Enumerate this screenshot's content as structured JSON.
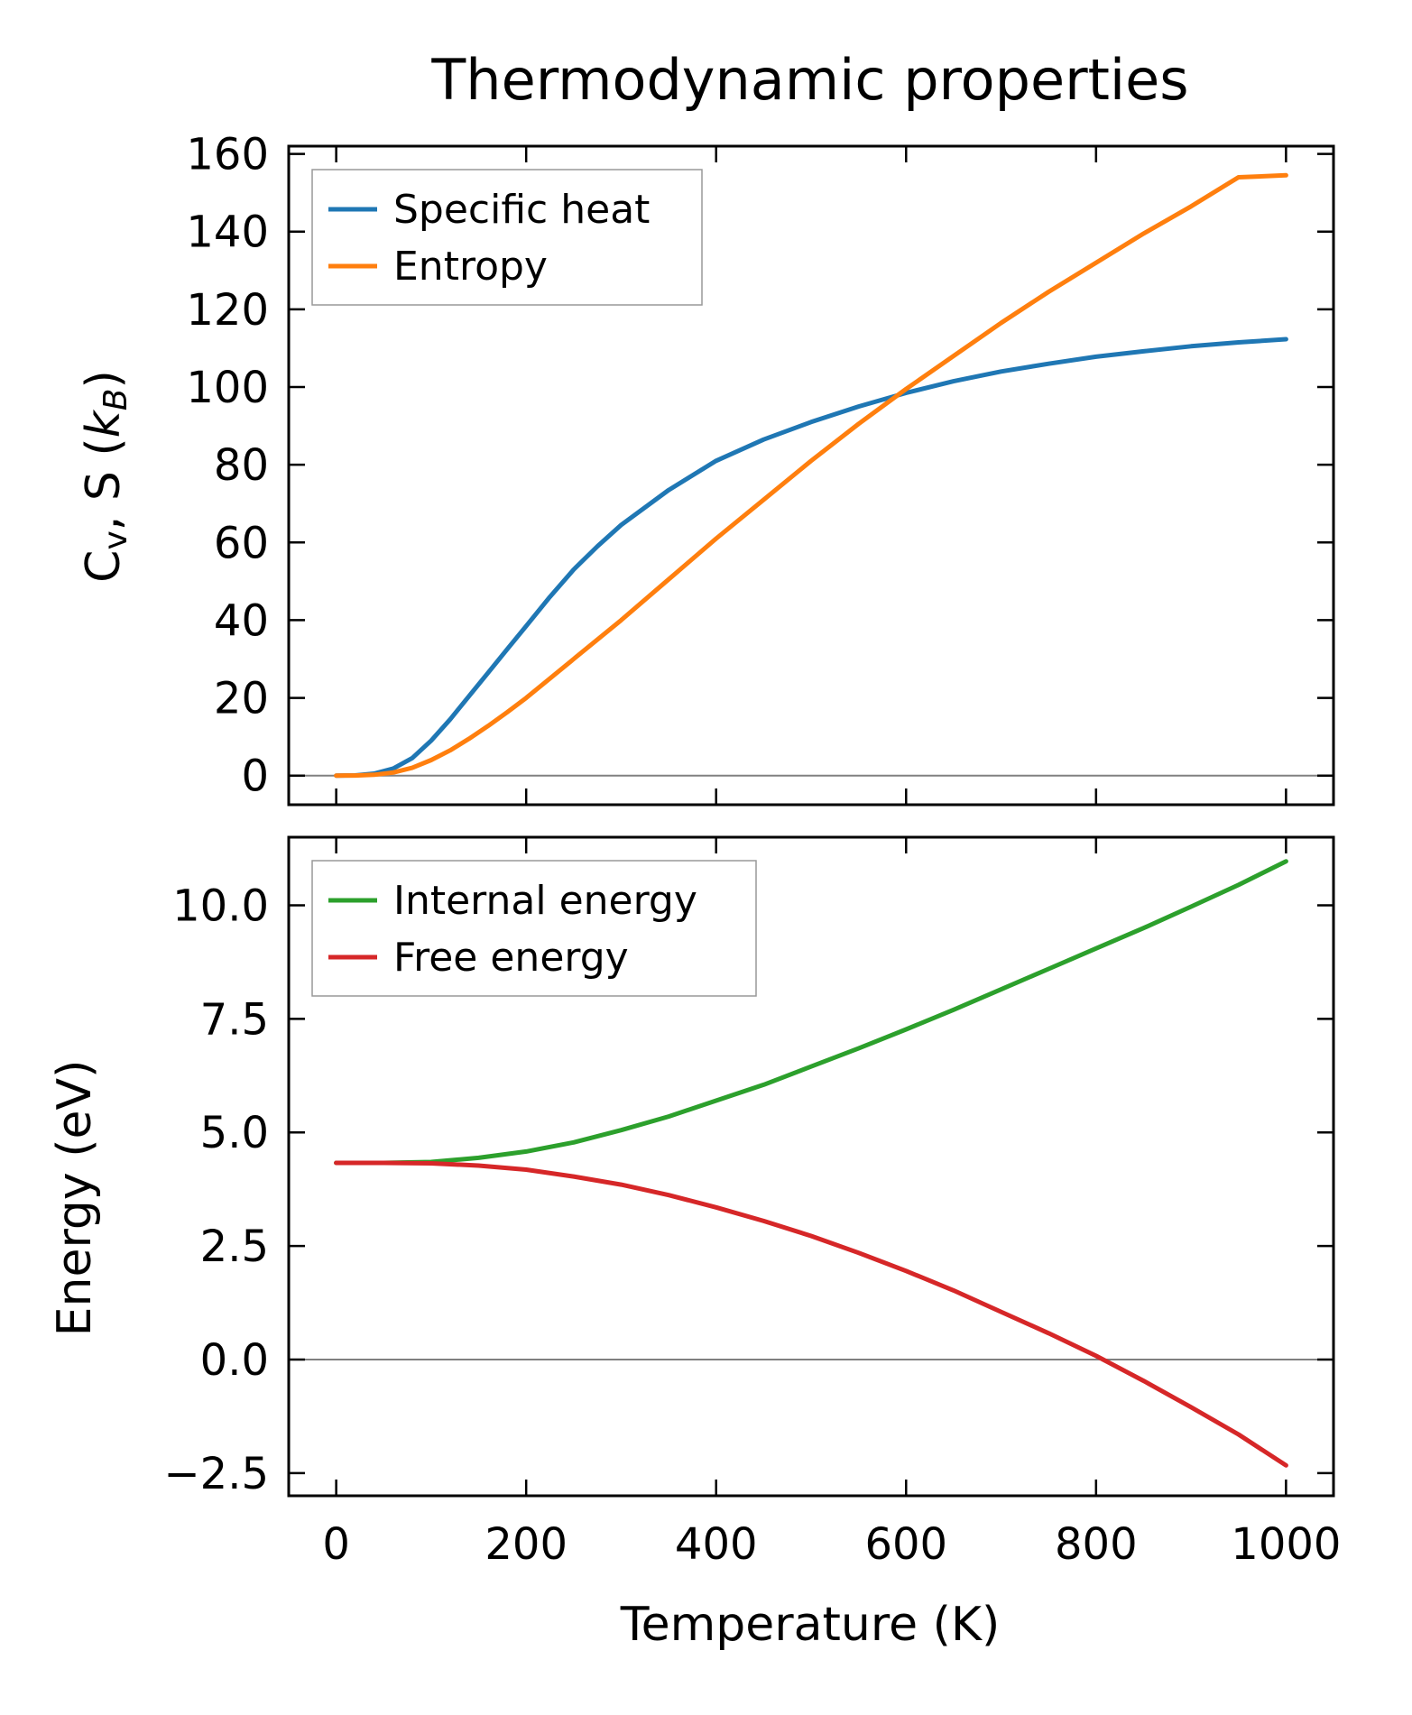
{
  "chart_data": [
    {
      "type": "line",
      "title": "Thermodynamic properties",
      "xlabel": "",
      "ylabel": "Cᵥ, S (k_B)",
      "ylabel_parts": {
        "prefix": "C",
        "sub_v": "v",
        "middle": ", S (",
        "k": "k",
        "sub_B": "B",
        "suffix": ")"
      },
      "xlim": [
        -50,
        1050
      ],
      "ylim": [
        -7.5,
        162
      ],
      "xticks": [
        0,
        200,
        400,
        600,
        800,
        1000
      ],
      "xtick_labels_visible": false,
      "yticks": [
        0,
        20,
        40,
        60,
        80,
        100,
        120,
        140,
        160
      ],
      "ytick_labels": [
        "0",
        "20",
        "40",
        "60",
        "80",
        "100",
        "120",
        "140",
        "160"
      ],
      "hline": 0,
      "legend_position": "upper-left",
      "series": [
        {
          "name": "Specific heat",
          "color": "#1f77b4",
          "x": [
            0,
            20,
            40,
            60,
            80,
            100,
            120,
            140,
            160,
            180,
            200,
            225,
            250,
            275,
            300,
            350,
            400,
            450,
            500,
            550,
            600,
            650,
            700,
            750,
            800,
            850,
            900,
            950,
            1000
          ],
          "y": [
            0,
            0.05,
            0.5,
            1.8,
            4.5,
            9,
            14.5,
            20.5,
            26.5,
            32.5,
            38.5,
            46,
            53,
            59,
            64.5,
            73.5,
            81,
            86.5,
            91,
            95,
            98.5,
            101.5,
            104,
            106,
            107.8,
            109.2,
            110.5,
            111.5,
            112.3
          ]
        },
        {
          "name": "Entropy",
          "color": "#ff7f0e",
          "x": [
            0,
            20,
            40,
            60,
            80,
            100,
            120,
            140,
            160,
            180,
            200,
            250,
            300,
            350,
            400,
            450,
            500,
            550,
            600,
            650,
            700,
            750,
            800,
            850,
            900,
            950,
            1000
          ],
          "y": [
            0,
            0.02,
            0.2,
            0.8,
            2,
            4,
            6.5,
            9.5,
            12.8,
            16.3,
            20,
            30,
            40,
            50.5,
            61,
            71,
            81,
            90.5,
            99.5,
            108,
            116.5,
            124.5,
            132,
            139.5,
            146.5,
            154,
            154.5
          ]
        }
      ]
    },
    {
      "type": "line",
      "title": "",
      "xlabel": "Temperature (K)",
      "ylabel": "Energy (eV)",
      "xlim": [
        -50,
        1050
      ],
      "ylim": [
        -3.0,
        11.5
      ],
      "xticks": [
        0,
        200,
        400,
        600,
        800,
        1000
      ],
      "xtick_labels": [
        "0",
        "200",
        "400",
        "600",
        "800",
        "1000"
      ],
      "yticks": [
        -2.5,
        0.0,
        2.5,
        5.0,
        7.5,
        10.0
      ],
      "ytick_labels": [
        "−2.5",
        "0.0",
        "2.5",
        "5.0",
        "7.5",
        "10.0"
      ],
      "hline": 0,
      "legend_position": "upper-left",
      "series": [
        {
          "name": "Internal energy",
          "color": "#2ca02c",
          "x": [
            0,
            50,
            100,
            150,
            200,
            250,
            300,
            350,
            400,
            450,
            500,
            550,
            600,
            650,
            700,
            750,
            800,
            850,
            900,
            950,
            1000
          ],
          "y": [
            4.33,
            4.33,
            4.35,
            4.44,
            4.58,
            4.78,
            5.05,
            5.35,
            5.7,
            6.05,
            6.45,
            6.85,
            7.27,
            7.7,
            8.15,
            8.6,
            9.05,
            9.5,
            9.97,
            10.45,
            10.97
          ]
        },
        {
          "name": "Free energy",
          "color": "#d62728",
          "x": [
            0,
            50,
            100,
            150,
            200,
            250,
            300,
            350,
            400,
            450,
            500,
            550,
            600,
            650,
            700,
            750,
            800,
            850,
            900,
            950,
            1000
          ],
          "y": [
            4.33,
            4.33,
            4.32,
            4.27,
            4.18,
            4.03,
            3.85,
            3.62,
            3.35,
            3.05,
            2.72,
            2.35,
            1.95,
            1.52,
            1.05,
            0.58,
            0.08,
            -0.47,
            -1.05,
            -1.65,
            -2.33
          ]
        }
      ]
    }
  ]
}
